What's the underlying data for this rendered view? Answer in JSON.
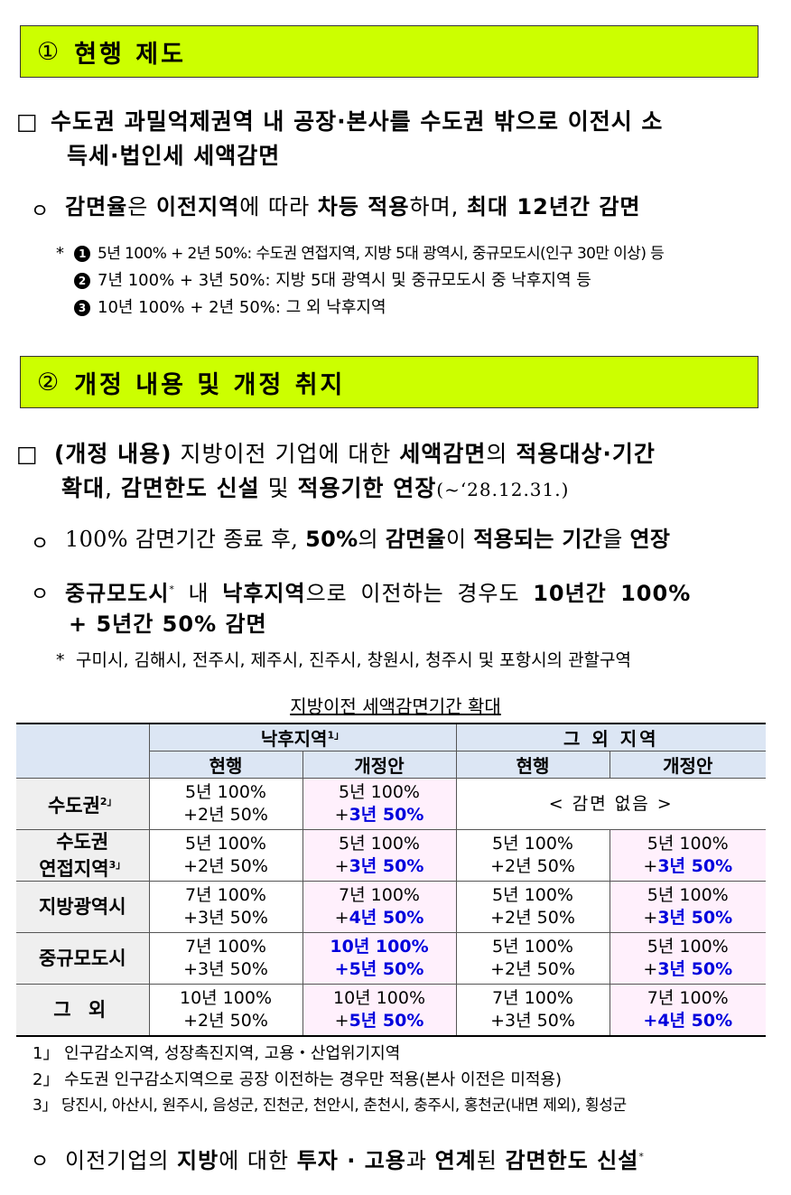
{
  "section1": {
    "num": "①",
    "title": "현행 제도"
  },
  "s1_box": {
    "mark": "□",
    "line1": "수도권 과밀억제권역 내 공장·본사를 수도권 밖으로 이전시 소",
    "line2": "득세·법인세 세액감면"
  },
  "s1_o": {
    "mark": "ㅇ",
    "t1": "감면율",
    "t2": "은 ",
    "t3": "이전지역",
    "t4": "에 따라 ",
    "t5": "차등 적용",
    "t6": "하며, ",
    "t7": "최대 12년간 감면"
  },
  "s1_notes": {
    "star": "*",
    "n1_num": "1",
    "n1": "5년 100% + 2년 50%: 수도권 연접지역, 지방 5대 광역시, 중규모도시(인구 30만 이상) 등",
    "n2_num": "2",
    "n2": "7년 100% + 3년 50%: 지방 5대 광역시 및 중규모도시 중 낙후지역 등",
    "n3_num": "3",
    "n3": "10년 100% + 2년 50%: 그 외 낙후지역"
  },
  "section2": {
    "num": "②",
    "title": "개정 내용 및 개정 취지"
  },
  "s2_box": {
    "mark": "□",
    "a1": "(개정 내용)",
    "a2": " 지방이전 ",
    "a3": "기업",
    "a4": "에 대한 ",
    "a5": "세액감면",
    "a6": "의 ",
    "a7": "적용대상·기간",
    "b1": "확대",
    "b2": ", ",
    "b3": "감면한도 신설",
    "b4": " 및 ",
    "b5": "적용기한 연장",
    "b6": "(~‘28.12.31.)"
  },
  "s2_o1": {
    "mark": "ㅇ",
    "t1": "100% 감면기간 종료 후, ",
    "t2": "50%",
    "t3": "의 ",
    "t4": "감면율",
    "t5": "이 ",
    "t6": "적용되는 기간",
    "t7": "을 ",
    "t8": "연장"
  },
  "s2_o2": {
    "mark": "ㅇ",
    "t1": "중규모도시",
    "t1sup": "*",
    "t2": " 내 ",
    "t3": "낙후지역",
    "t4": "으로 이전하는 경우도 ",
    "t5": "10년간 100%",
    "line2": "+ 5년간 50% 감면"
  },
  "s2_note": {
    "star": "*",
    "text": "구미시, 김해시, 전주시, 제주시, 진주시, 창원시, 청주시 및 포항시의 관할구역"
  },
  "table": {
    "title": "지방이전 세액감면기간 확대",
    "group1": "낙후지역",
    "group1_sup": "1」",
    "group2": "그 외 지역",
    "current": "현행",
    "proposed": "개정안",
    "rows": [
      {
        "name": "수도권",
        "sup": "2」",
        "a1": "5년 100%",
        "a2": "+2년 50%",
        "b1": "5년 100%",
        "b2p": "+",
        "b2": "3년 50%",
        "none": "< 감면 없음 >"
      },
      {
        "name1": "수도권",
        "name2": "연접지역",
        "sup": "3」",
        "a1": "5년 100%",
        "a2": "+2년 50%",
        "b1": "5년 100%",
        "b2p": "+",
        "b2": "3년 50%",
        "c1": "5년 100%",
        "c2": "+2년 50%",
        "d1": "5년 100%",
        "d2p": "+",
        "d2": "3년 50%"
      },
      {
        "name": "지방광역시",
        "a1": "7년 100%",
        "a2": "+3년 50%",
        "b1": "7년 100%",
        "b2p": "+",
        "b2": "4년 50%",
        "c1": "5년 100%",
        "c2": "+2년 50%",
        "d1": "5년 100%",
        "d2p": "+",
        "d2": "3년 50%"
      },
      {
        "name": "중규모도시",
        "a1": "7년 100%",
        "a2": "+3년 50%",
        "b1": "10년 100%",
        "b2p": "+",
        "b2": "5년 50%",
        "c1": "5년 100%",
        "c2": "+2년 50%",
        "d1": "5년 100%",
        "d2p": "+",
        "d2": "3년 50%"
      },
      {
        "name": "그 외",
        "a1": "10년 100%",
        "a2": "+2년 50%",
        "b1": "10년 100%",
        "b2p": "+",
        "b2": "5년 50%",
        "c1": "7년 100%",
        "c2": "+3년 50%",
        "d1": "7년 100%",
        "d2p": "+",
        "d2": "4년 50%"
      }
    ]
  },
  "footnotes": {
    "f1": "1」 인구감소지역, 성장촉진지역, 고용・산업위기지역",
    "f2": "2」 수도권 인구감소지역으로 공장 이전하는 경우만 적용(본사 이전은 미적용)",
    "f3": "3」 당진시, 아산시, 원주시, 음성군, 진천군, 천안시, 춘천시, 충주시, 홍천군(내면 제외), 횡성군"
  },
  "s2_o3": {
    "mark": "ㅇ",
    "t1": "이전기업의 ",
    "t2": "지방",
    "t3": "에 대한 ",
    "t4": "투자 · 고용",
    "t5": "과 ",
    "t6": "연계",
    "t7": "된 ",
    "t8": "감면한도 신설",
    "t8sup": "*"
  },
  "colors": {
    "section_bg": "#ccff00",
    "header_bg": "#dce6f4",
    "proposed_bg": "#fff0fc",
    "highlight_text": "#0000dd"
  }
}
